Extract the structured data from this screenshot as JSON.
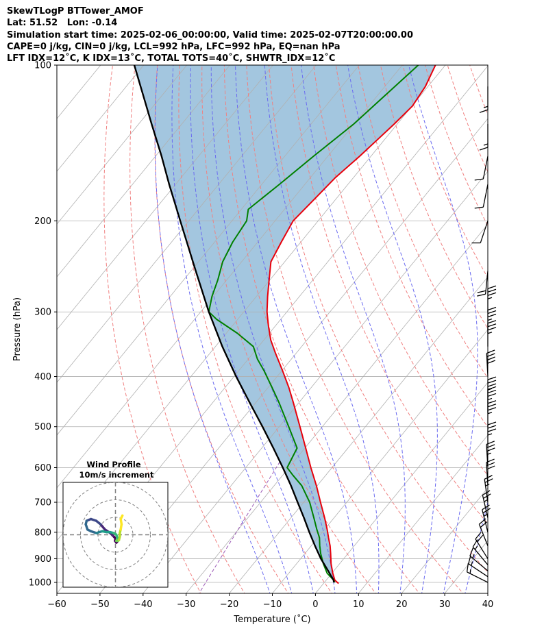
{
  "header": {
    "lines": [
      "SkewTLogP BTTower_AMOF",
      "Lat: 51.52   Lon: -0.14",
      "Simulation start time: 2025-02-06_00:00:00, Valid time: 2025-02-07T20:00:00.00",
      "CAPE=0 j/kg, CIN=0 j/kg, LCL=992 hPa, LFC=992 hPa, EQ=nan hPa",
      "LFT IDX=12˚C, K IDX=13˚C, TOTAL TOTS=40˚C, SHWTR_IDX=12˚C"
    ]
  },
  "colors": {
    "temperature": "#e8000b",
    "dewpoint": "#008000",
    "parcel": "#000000",
    "shading": "#a3c6df",
    "dry_adiabats": "#f08080",
    "moist_adiabats": "#6b6bf0",
    "mixing_ratio": "#9b59b6",
    "isotherms": "#b0b0b0"
  },
  "chart_data": [
    {
      "type": "line",
      "subtype": "skew-t log-p",
      "xlabel": "Temperature ($^\\circ$C)",
      "ylabel": "Pressure (hPa)",
      "xlim": [
        -60,
        40
      ],
      "ylim": [
        1050,
        100
      ],
      "y_scale": "log",
      "grid": true,
      "x_ticks": [
        "−60",
        "−50",
        "−40",
        "−30",
        "−20",
        "−10",
        "0",
        "10",
        "20",
        "30",
        "40"
      ],
      "x_tick_values": [
        -60,
        -50,
        -40,
        -30,
        -20,
        -10,
        0,
        10,
        20,
        30,
        40
      ],
      "y_ticks": [
        "1000",
        "900",
        "800",
        "700",
        "600",
        "500",
        "400",
        "300",
        "200",
        "100"
      ],
      "y_tick_values": [
        1000,
        900,
        800,
        700,
        600,
        500,
        400,
        300,
        200,
        100
      ],
      "series": [
        {
          "key": "temperature",
          "pressure": [
            1005,
            990,
            960,
            920,
            880,
            850,
            820,
            790,
            750,
            700,
            650,
            600,
            550,
            500,
            450,
            420,
            390,
            360,
            340,
            320,
            300,
            280,
            260,
            240,
            220,
            200,
            180,
            165,
            150,
            140,
            130,
            120,
            110,
            100
          ],
          "temp": [
            3.5,
            2.0,
            0.2,
            -2.0,
            -4.0,
            -5.6,
            -7.5,
            -9.4,
            -12.2,
            -16.1,
            -20.2,
            -24.9,
            -29.8,
            -35.2,
            -41.2,
            -45.2,
            -49.8,
            -54.9,
            -58.4,
            -61.5,
            -64.6,
            -67.4,
            -70.2,
            -73.2,
            -74.5,
            -75.8,
            -74.9,
            -74.2,
            -72.6,
            -71.7,
            -70.7,
            -69.9,
            -70.6,
            -72.3
          ]
        },
        {
          "key": "dewpoint",
          "pressure": [
            1000,
            990,
            960,
            920,
            880,
            850,
            820,
            790,
            750,
            700,
            650,
            620,
            600,
            550,
            500,
            450,
            420,
            390,
            370,
            350,
            330,
            310,
            300,
            280,
            260,
            240,
            220,
            200,
            190,
            170,
            150,
            130,
            115,
            100
          ],
          "temp": [
            2.4,
            1.7,
            -1.1,
            -3.8,
            -6.3,
            -8.0,
            -9.6,
            -11.8,
            -14.7,
            -18.6,
            -23.6,
            -27.7,
            -30.4,
            -31.8,
            -37.8,
            -44.5,
            -49.1,
            -54.1,
            -57.9,
            -61.2,
            -67.4,
            -74.9,
            -78.1,
            -80.3,
            -82.1,
            -84.4,
            -85.8,
            -86.6,
            -88.4,
            -85.9,
            -83.3,
            -80.1,
            -78.3,
            -76.3
          ]
        },
        {
          "key": "parcel",
          "pressure": [
            1000,
            990,
            950,
            900,
            850,
            800,
            750,
            700,
            650,
            600,
            550,
            500,
            450,
            400,
            350,
            300,
            250,
            200,
            170,
            150,
            130,
            115,
            100
          ],
          "temp": [
            2.2,
            1.7,
            -1.3,
            -5.3,
            -9.1,
            -13.0,
            -17.0,
            -21.4,
            -26.1,
            -31.4,
            -37.3,
            -43.9,
            -51.3,
            -59.5,
            -68.4,
            -78.1,
            -88.9,
            -102.0,
            -111.5,
            -118.6,
            -127.0,
            -134.1,
            -142.2
          ]
        }
      ],
      "isotherms": [
        -150,
        -140,
        -130,
        -120,
        -110,
        -100,
        -90,
        -80,
        -70,
        -60,
        -50,
        -40,
        -30,
        -20,
        -10,
        0,
        10,
        20,
        30,
        40
      ],
      "dry_adiabats_c": [
        -30,
        -20,
        -10,
        0,
        10,
        20,
        30,
        40,
        50,
        60,
        70,
        80,
        90,
        100,
        110,
        120,
        130
      ],
      "moist_adiabats_c": [
        -10,
        -5,
        0,
        5,
        10,
        15,
        20,
        25,
        30,
        35
      ],
      "mixing_ratio": [
        0.4
      ],
      "wind_barbs": [
        {
          "p": 1000,
          "u": 6,
          "v": -3
        },
        {
          "p": 975,
          "u": 6,
          "v": -4
        },
        {
          "p": 950,
          "u": 6,
          "v": -5
        },
        {
          "p": 925,
          "u": 5,
          "v": -6
        },
        {
          "p": 900,
          "u": 5,
          "v": -8
        },
        {
          "p": 850,
          "u": 4,
          "v": -10
        },
        {
          "p": 800,
          "u": 3,
          "v": -12
        },
        {
          "p": 750,
          "u": 3,
          "v": -13
        },
        {
          "p": 700,
          "u": 2,
          "v": -14
        },
        {
          "p": 650,
          "u": 1,
          "v": -16
        },
        {
          "p": 600,
          "u": 1,
          "v": -17
        },
        {
          "p": 550,
          "u": 0,
          "v": -18
        },
        {
          "p": 500,
          "u": 0,
          "v": -19
        },
        {
          "p": 470,
          "u": 0,
          "v": -19
        },
        {
          "p": 450,
          "u": 0,
          "v": -19
        },
        {
          "p": 400,
          "u": 1,
          "v": -20
        },
        {
          "p": 350,
          "u": 0,
          "v": -19
        },
        {
          "p": 330,
          "u": 0,
          "v": -18
        },
        {
          "p": 300,
          "u": 0,
          "v": -17
        },
        {
          "p": 250,
          "u": 1,
          "v": 10
        },
        {
          "p": 200,
          "u": 2,
          "v": 6
        },
        {
          "p": 170,
          "u": 1,
          "v": 5
        },
        {
          "p": 150,
          "u": 1,
          "v": 5
        },
        {
          "p": 130,
          "u": 0,
          "v": 7
        },
        {
          "p": 110,
          "u": 0,
          "v": 9
        }
      ]
    },
    {
      "type": "scatter",
      "subtype": "hodograph",
      "title": "Wind Profile",
      "subtitle": "10m/s increment",
      "rings_ms": [
        10,
        20,
        30
      ],
      "u": [
        1.0,
        0.5,
        -0.2,
        0.0,
        -1.5,
        -3.0,
        -6.0,
        -8.5,
        -11.0,
        -14.0,
        -16.5,
        -17.0,
        -16.0,
        -14.0,
        -11.0,
        -10.5,
        -9.5,
        -7.5,
        -5.0,
        -3.0,
        -1.0,
        0.0,
        0.5,
        1.0,
        0.8,
        0.5,
        1.5,
        2.0,
        2.5,
        2.5,
        3.0,
        3.5,
        3.0,
        4.0
      ],
      "v": [
        -4.0,
        -4.5,
        -3.5,
        -2.0,
        -0.5,
        1.0,
        3.0,
        6.0,
        8.0,
        9.0,
        8.0,
        6.0,
        3.0,
        2.0,
        1.0,
        1.0,
        1.5,
        2.0,
        1.5,
        1.5,
        1.0,
        0.5,
        0.0,
        -1.5,
        -3.0,
        -3.5,
        -3.5,
        -3.0,
        -1.0,
        1.0,
        3.0,
        6.0,
        9.0,
        11.0
      ]
    }
  ]
}
